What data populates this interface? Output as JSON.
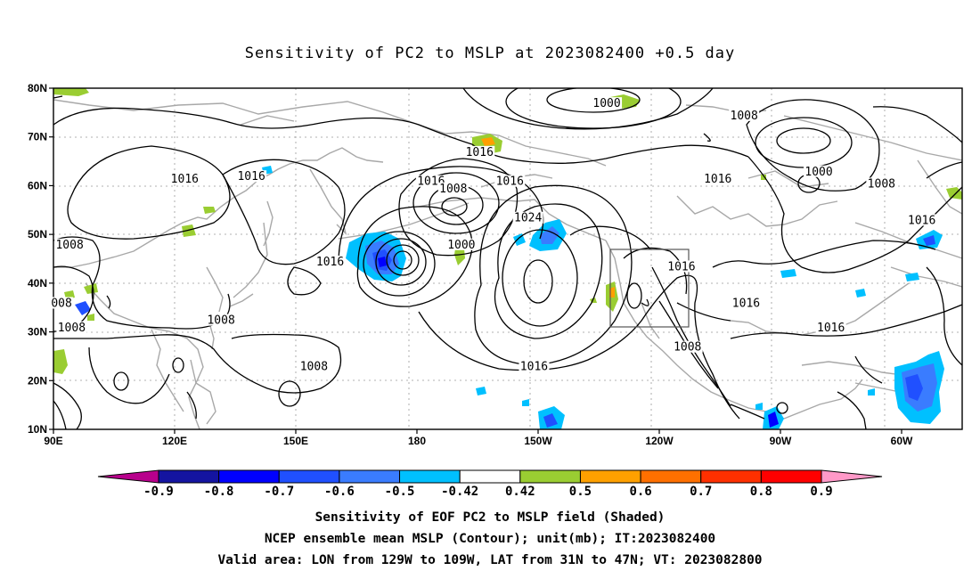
{
  "title": "Sensitivity of PC2 to MSLP at 2023082400 +0.5 day",
  "map": {
    "lon_labels": [
      "90E",
      "120E",
      "150E",
      "180",
      "150W",
      "120W",
      "90W",
      "60W"
    ],
    "lat_labels": [
      "80N",
      "70N",
      "60N",
      "50N",
      "40N",
      "30N",
      "20N",
      "10N"
    ],
    "contour_labels": [
      {
        "text": "1016",
        "lon": 195.5,
        "lat": 66.5
      },
      {
        "text": "1000",
        "lon": 227.0,
        "lat": 76.5
      },
      {
        "text": "1008",
        "lon": 261.0,
        "lat": 74.0
      },
      {
        "text": "1016",
        "lon": 183.5,
        "lat": 60.5
      },
      {
        "text": "1008",
        "lon": 189.0,
        "lat": 59.0
      },
      {
        "text": "1016",
        "lon": 203.0,
        "lat": 60.5
      },
      {
        "text": "1016",
        "lon": 122.5,
        "lat": 61.0
      },
      {
        "text": "1016",
        "lon": 139.0,
        "lat": 61.5
      },
      {
        "text": "1016",
        "lon": 254.5,
        "lat": 61.0
      },
      {
        "text": "1000",
        "lon": 279.5,
        "lat": 62.5
      },
      {
        "text": "1008",
        "lon": 295.0,
        "lat": 60.0
      },
      {
        "text": "1024",
        "lon": 207.5,
        "lat": 53.0
      },
      {
        "text": "1000",
        "lon": 191.0,
        "lat": 47.5
      },
      {
        "text": "1016",
        "lon": 305.0,
        "lat": 52.5
      },
      {
        "text": "1008",
        "lon": 94.0,
        "lat": 47.5
      },
      {
        "text": "1016",
        "lon": 158.5,
        "lat": 44.0
      },
      {
        "text": "1016",
        "lon": 245.5,
        "lat": 43.0
      },
      {
        "text": "008",
        "lon": 92.0,
        "lat": 35.5
      },
      {
        "text": "1008",
        "lon": 94.5,
        "lat": 30.5
      },
      {
        "text": "1008",
        "lon": 131.5,
        "lat": 32.0
      },
      {
        "text": "1016",
        "lon": 261.5,
        "lat": 35.5
      },
      {
        "text": "1016",
        "lon": 282.5,
        "lat": 30.5
      },
      {
        "text": "1008",
        "lon": 247.0,
        "lat": 26.5
      },
      {
        "text": "1016",
        "lon": 209.0,
        "lat": 22.5
      },
      {
        "text": "1008",
        "lon": 154.5,
        "lat": 22.5
      }
    ],
    "valid_box": {
      "lon_west": -129,
      "lon_east": -109,
      "lat_south": 31,
      "lat_north": 47
    }
  },
  "colorbar": {
    "labels": [
      "-0.9",
      "-0.8",
      "-0.7",
      "-0.6",
      "-0.5",
      "-0.42",
      "0.42",
      "0.5",
      "0.6",
      "0.7",
      "0.8",
      "0.9"
    ],
    "colors": [
      "#1414a0",
      "#0000ff",
      "#2050ff",
      "#3a7cff",
      "#00c0ff",
      "#ffffff",
      "#9acd32",
      "#ffa000",
      "#ff7000",
      "#ff3000",
      "#ff0000"
    ],
    "under_color": "#b8008c",
    "over_color": "#ff99c8"
  },
  "captions": {
    "line1": "Sensitivity of EOF PC2 to MSLP field (Shaded)",
    "line2": "NCEP ensemble mean MSLP (Contour); unit(mb); IT:2023082400",
    "line3": "Valid area: LON from 129W to 109W, LAT from 31N to 47N; VT: 2023082800"
  }
}
